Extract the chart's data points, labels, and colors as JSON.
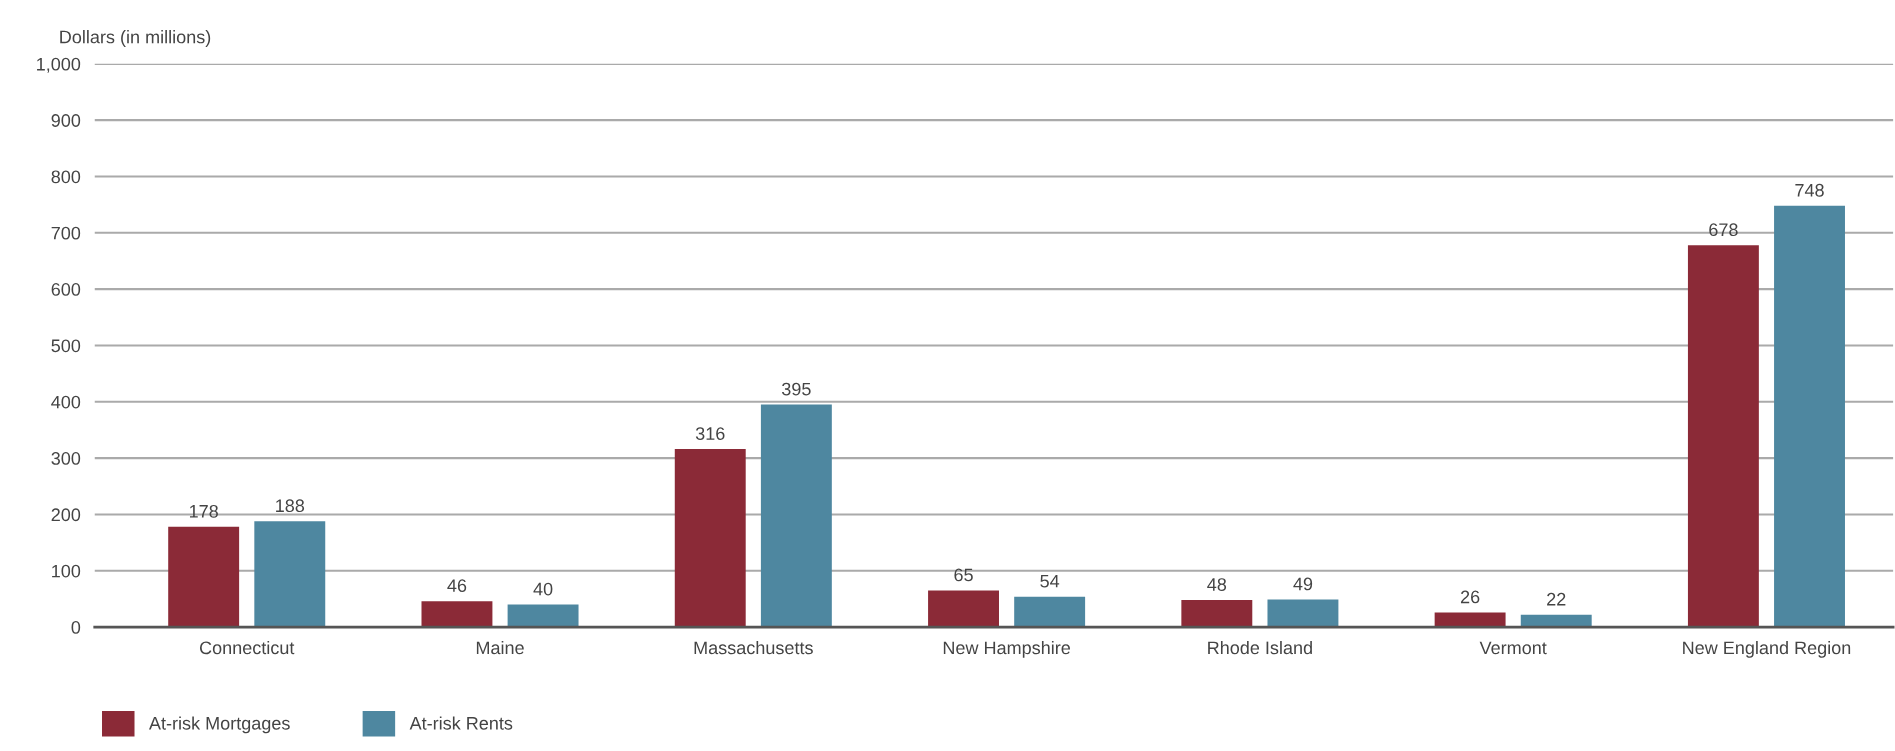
{
  "chart_data": {
    "type": "bar",
    "ylabel": "Dollars (in millions)",
    "categories": [
      "Connecticut",
      "Maine",
      "Massachusetts",
      "New Hampshire",
      "Rhode Island",
      "Vermont",
      "New England Region"
    ],
    "series": [
      {
        "name": "At-risk Mortgages",
        "color": "#8b2a37",
        "values": [
          178,
          46,
          316,
          65,
          48,
          26,
          678
        ]
      },
      {
        "name": "At-risk Rents",
        "color": "#4e87a0",
        "values": [
          188,
          40,
          395,
          54,
          49,
          22,
          748
        ]
      }
    ],
    "ylim": [
      0,
      1000
    ],
    "yticks": [
      0,
      100,
      200,
      300,
      400,
      500,
      600,
      700,
      800,
      900,
      {
        "value": 1000,
        "label": "1,000"
      }
    ],
    "grid": "y",
    "legend": "bottom left",
    "data_labels": true
  }
}
